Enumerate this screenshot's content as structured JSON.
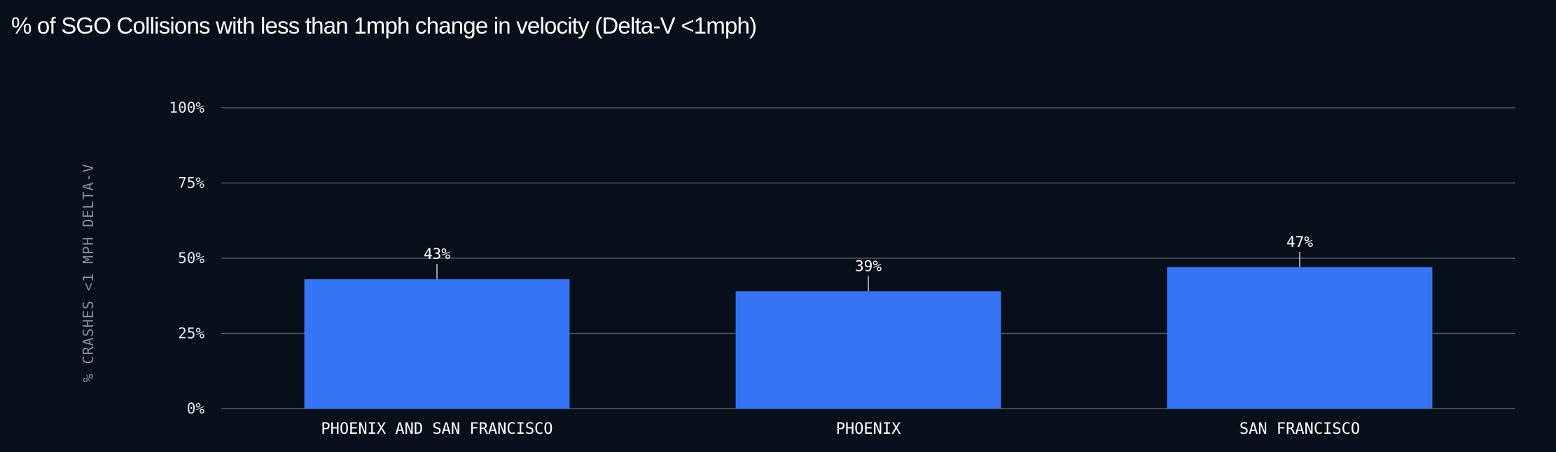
{
  "chart_data": {
    "type": "bar",
    "title": "% of SGO Collisions with less than 1mph change in velocity (Delta-V <1mph)",
    "ylabel": "% CRASHES <1 MPH DELTA-V",
    "xlabel": "",
    "categories": [
      "PHOENIX AND SAN FRANCISCO",
      "PHOENIX",
      "SAN FRANCISCO"
    ],
    "values": [
      43,
      39,
      47
    ],
    "value_labels": [
      "43%",
      "39%",
      "47%"
    ],
    "ylim": [
      0,
      100
    ],
    "yticks": [
      0,
      25,
      50,
      75,
      100
    ],
    "ytick_labels": [
      "0%",
      "25%",
      "50%",
      "75%",
      "100%"
    ],
    "grid": true,
    "legend": "none",
    "colors": {
      "background": "#090e1b",
      "bar": "#3575f5",
      "grid": "#4a5a66",
      "text": "#ffffff",
      "axis_title": "#8a8f99"
    }
  }
}
